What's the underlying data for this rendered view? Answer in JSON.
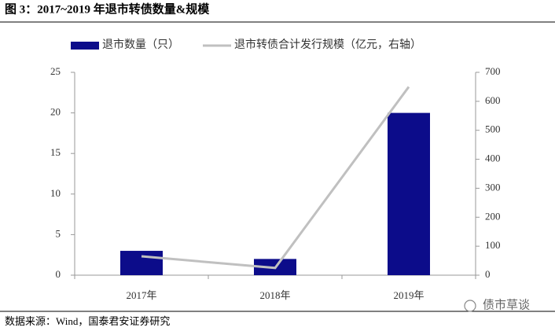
{
  "header": {
    "title": "图 3：2017~2019 年退市转债数量&规模"
  },
  "chart_data": {
    "type": "bar",
    "categories": [
      "2017年",
      "2018年",
      "2019年"
    ],
    "series": [
      {
        "name": "退市数量（只）",
        "color": "#0c0c8a",
        "type": "bar",
        "values": [
          3,
          2,
          20
        ]
      },
      {
        "name": "退市转债合计发行规模（亿元，右轴）",
        "color": "#c0c0c0",
        "type": "line",
        "axis": "y2",
        "values": [
          65,
          25,
          650
        ]
      }
    ],
    "ylim": [
      0,
      25
    ],
    "yticks": [
      0,
      5,
      10,
      15,
      20,
      25
    ],
    "y2lim": [
      0,
      700
    ],
    "y2ticks": [
      0,
      100,
      200,
      300,
      400,
      500,
      600,
      700
    ],
    "grid": false,
    "legend": "top"
  },
  "footer": {
    "source": "数据来源：Wind，国泰君安证券研究",
    "watermark": "债市草谈"
  }
}
